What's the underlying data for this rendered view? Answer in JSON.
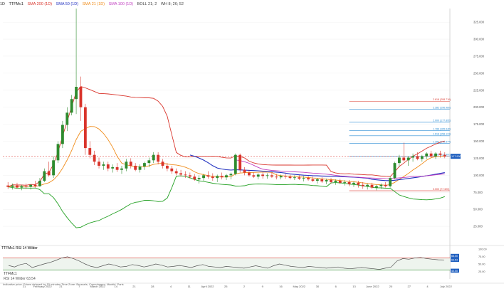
{
  "toolbar": {
    "interval": "1D",
    "symbol": "TTFMc1",
    "sma200": "SMA 200 (1D)",
    "sma50": "SMA 50 (1D)",
    "sma21": "SMA 21 (1D)",
    "sma100": "SMA 100 (1D)",
    "boll": "BOLL 21; 2",
    "extra": "WH 8; 26; 52"
  },
  "rsi_panel": {
    "title": "TTFMc1 RSI 14 Wilder",
    "label": "TTFMc1",
    "sub": "RSI 14 Wilder 63.54"
  },
  "footer": "Indicative price. Prices delayed by 15 minutes   Time Zone: Brussels, Copenhagen, Madrid, Paris",
  "colors": {
    "up": "#2e8b2e",
    "down": "#d9342b",
    "sma200": "#d9342b",
    "sma50": "#1f2fbf",
    "sma21": "#f08c1a",
    "sma100": "#c03fc0",
    "boll": "#22a022",
    "fib": "#2a8cd4"
  },
  "chart_data": {
    "type": "candlestick",
    "ylim": [
      0,
      345
    ],
    "y_ticks": [
      25,
      50,
      75,
      100,
      125,
      150,
      175,
      200,
      225,
      250,
      275,
      300,
      325
    ],
    "y_tick_labels": [
      "25.000",
      "50.000",
      "75.000",
      "100.000",
      "125.000",
      "150.000",
      "175.000",
      "200.000",
      "225.000",
      "250.000",
      "275.000",
      "300.000",
      "325.000"
    ],
    "x_labels": [
      "21",
      "February 2022",
      "21",
      "7",
      "March 2022",
      "14",
      "21",
      "28",
      "4",
      "11",
      "April 2022",
      "25",
      "2",
      "9",
      "16",
      "May 2022",
      "30",
      "6",
      "13",
      "June 2022",
      "20",
      "27",
      "4",
      "July 2022"
    ],
    "last_price_label": "127.900",
    "fib_levels": [
      {
        "label": "0.000 (77.320)",
        "value": 77.3
      },
      {
        "label": "1.000 (127.900)",
        "value": 127.9
      },
      {
        "label": "1.382 (146.674)",
        "value": 146.7
      },
      {
        "label": "1.618 (158.131)",
        "value": 158.1
      },
      {
        "label": "1.786 (165.646)",
        "value": 165.6
      },
      {
        "label": "2.000 (177.895)",
        "value": 177.9
      },
      {
        "label": "2.382 (196.989)",
        "value": 197.0
      },
      {
        "label": "2.618 (208.718)",
        "value": 208.7
      }
    ],
    "candles": [
      {
        "o": 85,
        "h": 90,
        "l": 80,
        "c": 83
      },
      {
        "o": 83,
        "h": 88,
        "l": 79,
        "c": 85
      },
      {
        "o": 85,
        "h": 89,
        "l": 81,
        "c": 82
      },
      {
        "o": 82,
        "h": 86,
        "l": 78,
        "c": 84
      },
      {
        "o": 84,
        "h": 88,
        "l": 80,
        "c": 83
      },
      {
        "o": 83,
        "h": 87,
        "l": 79,
        "c": 86
      },
      {
        "o": 86,
        "h": 92,
        "l": 82,
        "c": 84
      },
      {
        "o": 84,
        "h": 96,
        "l": 83,
        "c": 92
      },
      {
        "o": 92,
        "h": 110,
        "l": 90,
        "c": 106
      },
      {
        "o": 106,
        "h": 120,
        "l": 98,
        "c": 100
      },
      {
        "o": 100,
        "h": 128,
        "l": 96,
        "c": 122
      },
      {
        "o": 122,
        "h": 150,
        "l": 118,
        "c": 146
      },
      {
        "o": 146,
        "h": 180,
        "l": 140,
        "c": 174
      },
      {
        "o": 174,
        "h": 200,
        "l": 165,
        "c": 192
      },
      {
        "o": 192,
        "h": 218,
        "l": 188,
        "c": 212
      },
      {
        "o": 212,
        "h": 345,
        "l": 190,
        "c": 230
      },
      {
        "o": 230,
        "h": 245,
        "l": 180,
        "c": 200
      },
      {
        "o": 200,
        "h": 205,
        "l": 130,
        "c": 140
      },
      {
        "o": 140,
        "h": 150,
        "l": 125,
        "c": 130
      },
      {
        "o": 130,
        "h": 136,
        "l": 115,
        "c": 120
      },
      {
        "o": 120,
        "h": 126,
        "l": 110,
        "c": 114
      },
      {
        "o": 114,
        "h": 120,
        "l": 108,
        "c": 116
      },
      {
        "o": 116,
        "h": 120,
        "l": 106,
        "c": 110
      },
      {
        "o": 110,
        "h": 116,
        "l": 104,
        "c": 112
      },
      {
        "o": 112,
        "h": 118,
        "l": 105,
        "c": 108
      },
      {
        "o": 108,
        "h": 114,
        "l": 102,
        "c": 110
      },
      {
        "o": 110,
        "h": 124,
        "l": 106,
        "c": 120
      },
      {
        "o": 120,
        "h": 125,
        "l": 110,
        "c": 114
      },
      {
        "o": 114,
        "h": 118,
        "l": 106,
        "c": 108
      },
      {
        "o": 108,
        "h": 116,
        "l": 104,
        "c": 113
      },
      {
        "o": 113,
        "h": 120,
        "l": 108,
        "c": 118
      },
      {
        "o": 118,
        "h": 126,
        "l": 112,
        "c": 122
      },
      {
        "o": 122,
        "h": 134,
        "l": 118,
        "c": 130
      },
      {
        "o": 130,
        "h": 134,
        "l": 116,
        "c": 120
      },
      {
        "o": 120,
        "h": 124,
        "l": 110,
        "c": 114
      },
      {
        "o": 114,
        "h": 118,
        "l": 106,
        "c": 110
      },
      {
        "o": 110,
        "h": 114,
        "l": 102,
        "c": 106
      },
      {
        "o": 106,
        "h": 110,
        "l": 100,
        "c": 103
      },
      {
        "o": 103,
        "h": 108,
        "l": 98,
        "c": 101
      },
      {
        "o": 101,
        "h": 106,
        "l": 96,
        "c": 100
      },
      {
        "o": 100,
        "h": 104,
        "l": 95,
        "c": 98
      },
      {
        "o": 98,
        "h": 102,
        "l": 92,
        "c": 94
      },
      {
        "o": 94,
        "h": 100,
        "l": 88,
        "c": 96
      },
      {
        "o": 96,
        "h": 102,
        "l": 92,
        "c": 100
      },
      {
        "o": 100,
        "h": 106,
        "l": 95,
        "c": 98
      },
      {
        "o": 98,
        "h": 103,
        "l": 92,
        "c": 96
      },
      {
        "o": 96,
        "h": 101,
        "l": 90,
        "c": 99
      },
      {
        "o": 99,
        "h": 104,
        "l": 94,
        "c": 97
      },
      {
        "o": 97,
        "h": 102,
        "l": 93,
        "c": 100
      },
      {
        "o": 100,
        "h": 104,
        "l": 94,
        "c": 102
      },
      {
        "o": 102,
        "h": 132,
        "l": 100,
        "c": 130
      },
      {
        "o": 130,
        "h": 132,
        "l": 104,
        "c": 108
      },
      {
        "o": 108,
        "h": 112,
        "l": 100,
        "c": 104
      },
      {
        "o": 104,
        "h": 108,
        "l": 98,
        "c": 100
      },
      {
        "o": 100,
        "h": 104,
        "l": 96,
        "c": 98
      },
      {
        "o": 98,
        "h": 103,
        "l": 94,
        "c": 101
      },
      {
        "o": 101,
        "h": 104,
        "l": 95,
        "c": 99
      },
      {
        "o": 99,
        "h": 103,
        "l": 95,
        "c": 100
      },
      {
        "o": 100,
        "h": 104,
        "l": 96,
        "c": 98
      },
      {
        "o": 98,
        "h": 102,
        "l": 94,
        "c": 97
      },
      {
        "o": 97,
        "h": 101,
        "l": 94,
        "c": 99
      },
      {
        "o": 99,
        "h": 102,
        "l": 95,
        "c": 98
      },
      {
        "o": 98,
        "h": 101,
        "l": 94,
        "c": 96
      },
      {
        "o": 96,
        "h": 100,
        "l": 93,
        "c": 97
      },
      {
        "o": 97,
        "h": 100,
        "l": 93,
        "c": 95
      },
      {
        "o": 95,
        "h": 99,
        "l": 91,
        "c": 96
      },
      {
        "o": 96,
        "h": 99,
        "l": 92,
        "c": 94
      },
      {
        "o": 94,
        "h": 98,
        "l": 90,
        "c": 92
      },
      {
        "o": 92,
        "h": 96,
        "l": 88,
        "c": 94
      },
      {
        "o": 94,
        "h": 97,
        "l": 89,
        "c": 91
      },
      {
        "o": 91,
        "h": 95,
        "l": 87,
        "c": 93
      },
      {
        "o": 93,
        "h": 96,
        "l": 88,
        "c": 90
      },
      {
        "o": 90,
        "h": 94,
        "l": 86,
        "c": 92
      },
      {
        "o": 92,
        "h": 95,
        "l": 87,
        "c": 89
      },
      {
        "o": 89,
        "h": 93,
        "l": 85,
        "c": 90
      },
      {
        "o": 90,
        "h": 93,
        "l": 84,
        "c": 87
      },
      {
        "o": 87,
        "h": 91,
        "l": 83,
        "c": 89
      },
      {
        "o": 89,
        "h": 92,
        "l": 82,
        "c": 86
      },
      {
        "o": 86,
        "h": 90,
        "l": 80,
        "c": 84
      },
      {
        "o": 84,
        "h": 88,
        "l": 79,
        "c": 86
      },
      {
        "o": 86,
        "h": 89,
        "l": 80,
        "c": 82
      },
      {
        "o": 82,
        "h": 86,
        "l": 78,
        "c": 84
      },
      {
        "o": 84,
        "h": 88,
        "l": 80,
        "c": 86
      },
      {
        "o": 86,
        "h": 90,
        "l": 82,
        "c": 84
      },
      {
        "o": 84,
        "h": 98,
        "l": 82,
        "c": 96
      },
      {
        "o": 96,
        "h": 120,
        "l": 94,
        "c": 118
      },
      {
        "o": 118,
        "h": 130,
        "l": 112,
        "c": 126
      },
      {
        "o": 126,
        "h": 148,
        "l": 120,
        "c": 122
      },
      {
        "o": 122,
        "h": 128,
        "l": 114,
        "c": 126
      },
      {
        "o": 126,
        "h": 132,
        "l": 120,
        "c": 128
      },
      {
        "o": 128,
        "h": 134,
        "l": 122,
        "c": 124
      },
      {
        "o": 124,
        "h": 130,
        "l": 120,
        "c": 128
      },
      {
        "o": 128,
        "h": 134,
        "l": 124,
        "c": 132
      },
      {
        "o": 132,
        "h": 136,
        "l": 126,
        "c": 128
      },
      {
        "o": 128,
        "h": 134,
        "l": 124,
        "c": 132
      },
      {
        "o": 132,
        "h": 136,
        "l": 126,
        "c": 130
      },
      {
        "o": 130,
        "h": 134,
        "l": 125,
        "c": 127.9
      }
    ],
    "rsi": {
      "ylim": [
        0,
        100
      ],
      "y_tick_labels": [
        "25.00",
        "50.00",
        "75.00",
        "100.00"
      ],
      "bands": [
        30,
        70
      ],
      "band_labels": [
        "66.00",
        "63.54",
        "40.00"
      ],
      "values": [
        45,
        40,
        48,
        52,
        38,
        44,
        50,
        55,
        62,
        70,
        74,
        68,
        60,
        50,
        42,
        38,
        44,
        50,
        46,
        40,
        42,
        48,
        45,
        40,
        44,
        50,
        46,
        40,
        42,
        45,
        42,
        38,
        44,
        48,
        42,
        40,
        38,
        42,
        40,
        38,
        36,
        40,
        44,
        40,
        36,
        44,
        50,
        46,
        42,
        40,
        38,
        42,
        40,
        38,
        36,
        38,
        40,
        36,
        34,
        36,
        38,
        36,
        34,
        32,
        36,
        40,
        60,
        68,
        66,
        70,
        72,
        68,
        66,
        64,
        63.54
      ]
    }
  }
}
